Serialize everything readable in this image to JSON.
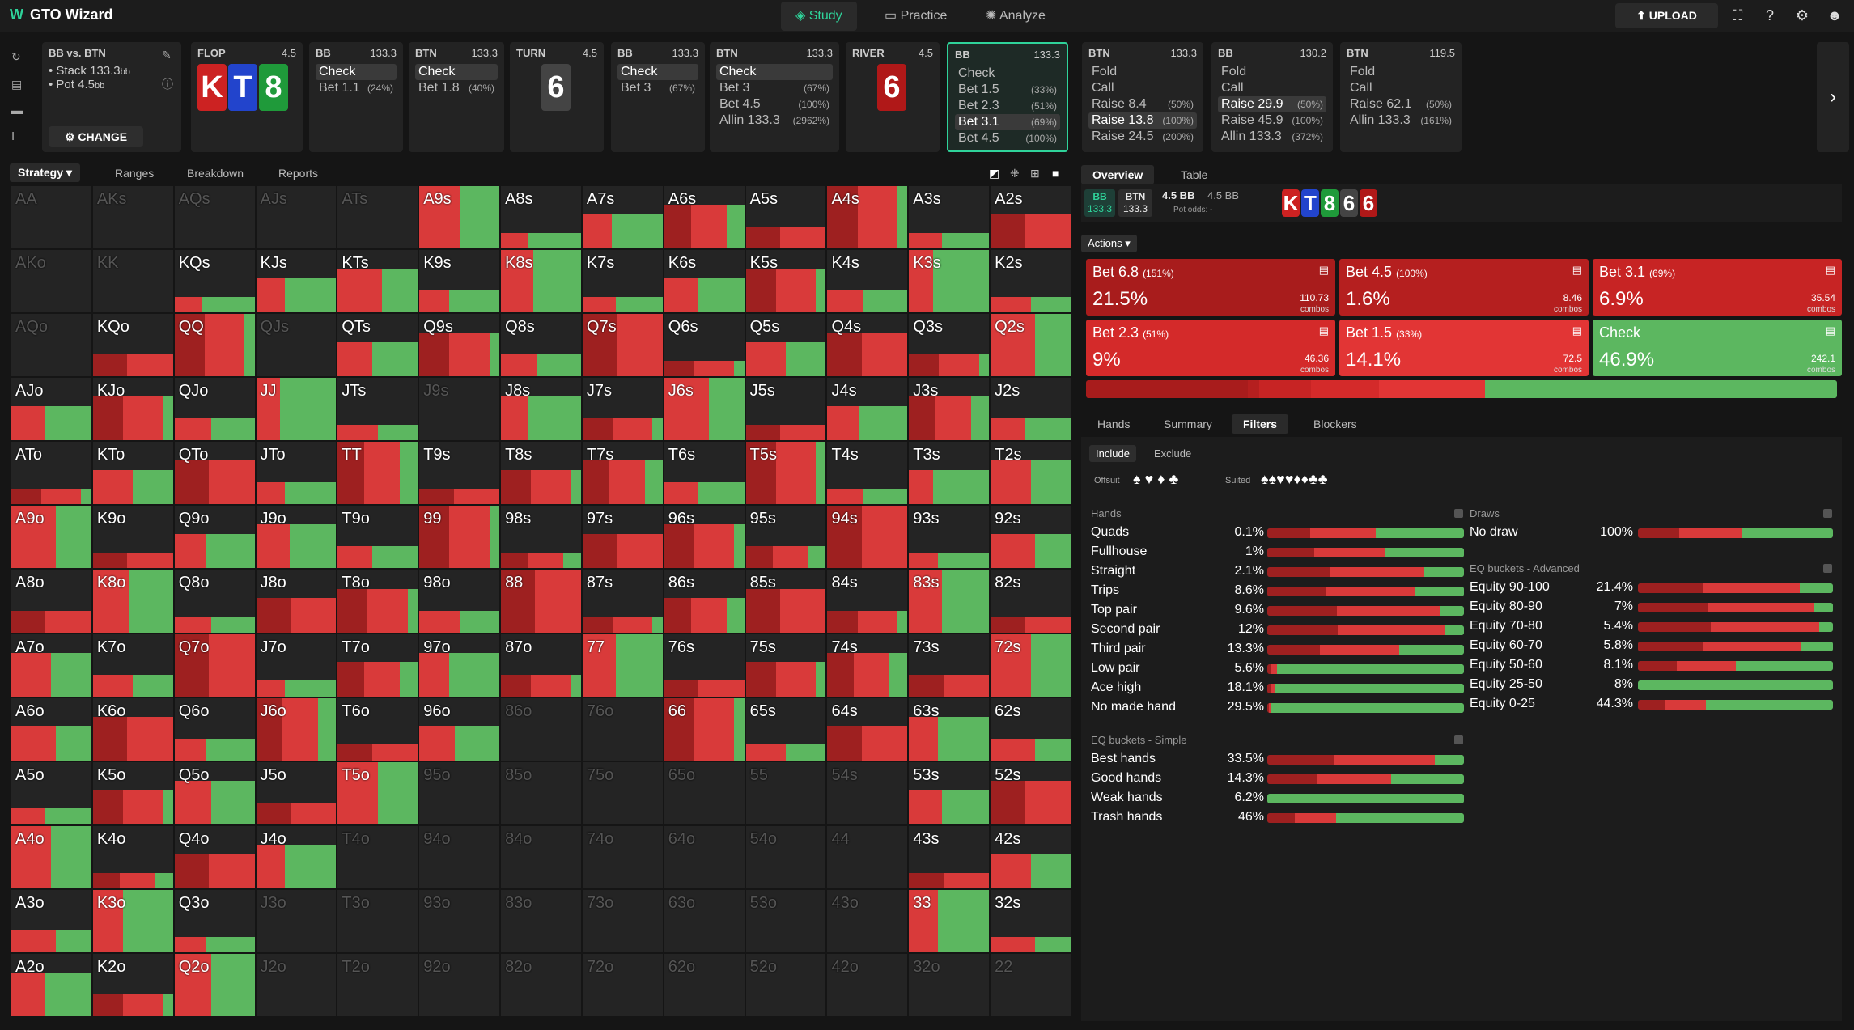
{
  "app": {
    "title": "GTO Wizard",
    "nav": [
      "Study",
      "Practice",
      "Analyze"
    ],
    "upload": "UPLOAD"
  },
  "spot": {
    "title": "BB vs. BTN",
    "stack": "Stack 133.3",
    "stack_unit": "bb",
    "pot": "Pot 4.5",
    "pot_unit": "bb",
    "change": "CHANGE"
  },
  "nodes": [
    {
      "type": "street",
      "name": "FLOP",
      "amt": "4.5",
      "cards": [
        {
          "r": "K",
          "c": "#c22"
        },
        {
          "r": "T",
          "c": "#2244cc"
        },
        {
          "r": "8",
          "c": "#1f9a3a"
        }
      ]
    },
    {
      "type": "player",
      "name": "BB",
      "amt": "133.3",
      "acts": [
        {
          "a": "Check",
          "p": "",
          "sel": true
        },
        {
          "a": "Bet 1.1",
          "p": "(24%)",
          "sel": false
        }
      ]
    },
    {
      "type": "player",
      "name": "BTN",
      "amt": "133.3",
      "acts": [
        {
          "a": "Check",
          "p": "",
          "sel": true
        },
        {
          "a": "Bet 1.8",
          "p": "(40%)",
          "sel": false
        }
      ]
    },
    {
      "type": "street",
      "name": "TURN",
      "amt": "4.5",
      "cards": [
        {
          "r": "6",
          "c": "#444"
        }
      ]
    },
    {
      "type": "player",
      "name": "BB",
      "amt": "133.3",
      "acts": [
        {
          "a": "Check",
          "p": "",
          "sel": true
        },
        {
          "a": "Bet 3",
          "p": "(67%)",
          "sel": false
        }
      ]
    },
    {
      "type": "player",
      "name": "BTN",
      "amt": "133.3",
      "acts": [
        {
          "a": "Check",
          "p": "",
          "sel": true
        },
        {
          "a": "Bet 3",
          "p": "(67%)",
          "sel": false
        },
        {
          "a": "Bet 4.5",
          "p": "(100%)",
          "sel": false
        },
        {
          "a": "Allin 133.3",
          "p": "(2962%)",
          "sel": false
        }
      ]
    },
    {
      "type": "street",
      "name": "RIVER",
      "amt": "4.5",
      "cards": [
        {
          "r": "6",
          "c": "#b01818"
        }
      ]
    },
    {
      "type": "player",
      "name": "BB",
      "amt": "133.3",
      "cur": true,
      "acts": [
        {
          "a": "Check",
          "p": "",
          "sel": false
        },
        {
          "a": "Bet 1.5",
          "p": "(33%)",
          "sel": false
        },
        {
          "a": "Bet 2.3",
          "p": "(51%)",
          "sel": false
        },
        {
          "a": "Bet 3.1",
          "p": "(69%)",
          "sel": true
        },
        {
          "a": "Bet 4.5",
          "p": "(100%)",
          "sel": false
        }
      ]
    },
    {
      "type": "player",
      "name": "BTN",
      "amt": "133.3",
      "acts": [
        {
          "a": "Fold",
          "p": "",
          "sel": false
        },
        {
          "a": "Call",
          "p": "",
          "sel": false
        },
        {
          "a": "Raise 8.4",
          "p": "(50%)",
          "sel": false
        },
        {
          "a": "Raise 13.8",
          "p": "(100%)",
          "sel": true
        },
        {
          "a": "Raise 24.5",
          "p": "(200%)",
          "sel": false
        }
      ]
    },
    {
      "type": "player",
      "name": "BB",
      "amt": "130.2",
      "acts": [
        {
          "a": "Fold",
          "p": "",
          "sel": false
        },
        {
          "a": "Call",
          "p": "",
          "sel": false
        },
        {
          "a": "Raise 29.9",
          "p": "(50%)",
          "sel": true
        },
        {
          "a": "Raise 45.9",
          "p": "(100%)",
          "sel": false
        },
        {
          "a": "Allin 133.3",
          "p": "(372%)",
          "sel": false
        }
      ]
    },
    {
      "type": "player",
      "name": "BTN",
      "amt": "119.5",
      "acts": [
        {
          "a": "Fold",
          "p": "",
          "sel": false
        },
        {
          "a": "Call",
          "p": "",
          "sel": false
        },
        {
          "a": "Raise 62.1",
          "p": "(50%)",
          "sel": false
        },
        {
          "a": "Allin 133.3",
          "p": "(161%)",
          "sel": false
        }
      ]
    }
  ],
  "subtabs": [
    "Strategy",
    "Ranges",
    "Breakdown",
    "Reports"
  ],
  "ranks": [
    "A",
    "K",
    "Q",
    "J",
    "T",
    "9",
    "8",
    "7",
    "6",
    "5",
    "4",
    "3",
    "2"
  ],
  "grid_mix": [
    "dddddgggrrrgrrrgggggggrgg",
    "ddgggggggrggggggrggggggdgg",
    "drrdgrgrrgrrggrrrrgrgrgrrr",
    "grgggdgrgrgrgrgrrrggggggrg",
    "rgrgrrrrgrgggrgrrrrrrrrrr",
    "grgggrrrrrrgggrgrrrgrrrgrr",
    "rggrrgrrrrrgrggrgrrrrrrrrr",
    "ggrgrgrgrrrrggggrgrgrrgrgg",
    "grgrrgddrgrggggrrgrgggrgrg",
    "grgrgddddddgrrgggggrgrgrgr",
    "grrgdddddddrgggggrgrgrgrg",
    "gggddddddddggrggggrgggg",
    "grgdddddddddddgg"
  ],
  "overview": {
    "tabs": [
      "Overview",
      "Table"
    ],
    "bb": "BB",
    "bb_stack": "133.3",
    "btn": "BTN",
    "btn_stack": "133.3",
    "pot": "4.5 BB",
    "pot2": "4.5 BB",
    "potodds": "Pot odds: -",
    "board": [
      {
        "r": "K",
        "c": "#c22"
      },
      {
        "r": "T",
        "c": "#2244cc"
      },
      {
        "r": "8",
        "c": "#1f9a3a"
      },
      {
        "r": "6",
        "c": "#444"
      },
      {
        "r": "6",
        "c": "#b01818"
      }
    ]
  },
  "actions_label": "Actions",
  "actions": [
    {
      "name": "Bet 6.8",
      "pct": "(151%)",
      "freq": "21.5%",
      "combos": "110.73",
      "color": "#a81c1c"
    },
    {
      "name": "Bet 4.5",
      "pct": "(100%)",
      "freq": "1.6%",
      "combos": "8.46",
      "color": "#b51f1f"
    },
    {
      "name": "Bet 3.1",
      "pct": "(69%)",
      "freq": "6.9%",
      "combos": "35.54",
      "color": "#c72424"
    },
    {
      "name": "Bet 2.3",
      "pct": "(51%)",
      "freq": "9%",
      "combos": "46.36",
      "color": "#d42a2a"
    },
    {
      "name": "Bet 1.5",
      "pct": "(33%)",
      "freq": "14.1%",
      "combos": "72.5",
      "color": "#e23535"
    },
    {
      "name": "Check",
      "pct": "",
      "freq": "46.9%",
      "combos": "242.1",
      "color": "#5cb760"
    }
  ],
  "combos_label": "combos",
  "lowertabs": [
    "Hands",
    "Summary",
    "Filters",
    "Blockers"
  ],
  "filters": {
    "include": "Include",
    "exclude": "Exclude",
    "offsuit": "Offsuit",
    "suited": "Suited",
    "suits": [
      "♠",
      "♥",
      "♦",
      "♣"
    ]
  },
  "hands_header": "Hands",
  "hands": [
    {
      "n": "Quads",
      "p": "0.1%",
      "r": 0.55
    },
    {
      "n": "Fullhouse",
      "p": "1%",
      "r": 0.6
    },
    {
      "n": "Straight",
      "p": "2.1%",
      "r": 0.8
    },
    {
      "n": "Trips",
      "p": "8.6%",
      "r": 0.75
    },
    {
      "n": "Top pair",
      "p": "9.6%",
      "r": 0.88
    },
    {
      "n": "Second pair",
      "p": "12%",
      "r": 0.9
    },
    {
      "n": "Third pair",
      "p": "13.3%",
      "r": 0.67
    },
    {
      "n": "Low pair",
      "p": "5.6%",
      "r": 0.05
    },
    {
      "n": "Ace high",
      "p": "18.1%",
      "r": 0.04
    },
    {
      "n": "No made hand",
      "p": "29.5%",
      "r": 0.02
    }
  ],
  "eqs_header": "EQ buckets - Simple",
  "eq_simple": [
    {
      "n": "Best hands",
      "p": "33.5%",
      "r": 0.85
    },
    {
      "n": "Good hands",
      "p": "14.3%",
      "r": 0.63
    },
    {
      "n": "Weak hands",
      "p": "6.2%",
      "r": 0.0
    },
    {
      "n": "Trash hands",
      "p": "46%",
      "r": 0.35
    }
  ],
  "draws_header": "Draws",
  "draws": [
    {
      "n": "No draw",
      "p": "100%",
      "r": 0.53
    }
  ],
  "eqa_header": "EQ buckets - Advanced",
  "eq_adv": [
    {
      "n": "Equity 90-100",
      "p": "21.4%",
      "r": 0.83
    },
    {
      "n": "Equity 80-90",
      "p": "7%",
      "r": 0.9
    },
    {
      "n": "Equity 70-80",
      "p": "5.4%",
      "r": 0.93
    },
    {
      "n": "Equity 60-70",
      "p": "5.8%",
      "r": 0.84
    },
    {
      "n": "Equity 50-60",
      "p": "8.1%",
      "r": 0.5
    },
    {
      "n": "Equity 25-50",
      "p": "8%",
      "r": 0.0
    },
    {
      "n": "Equity 0-25",
      "p": "44.3%",
      "r": 0.35
    }
  ]
}
